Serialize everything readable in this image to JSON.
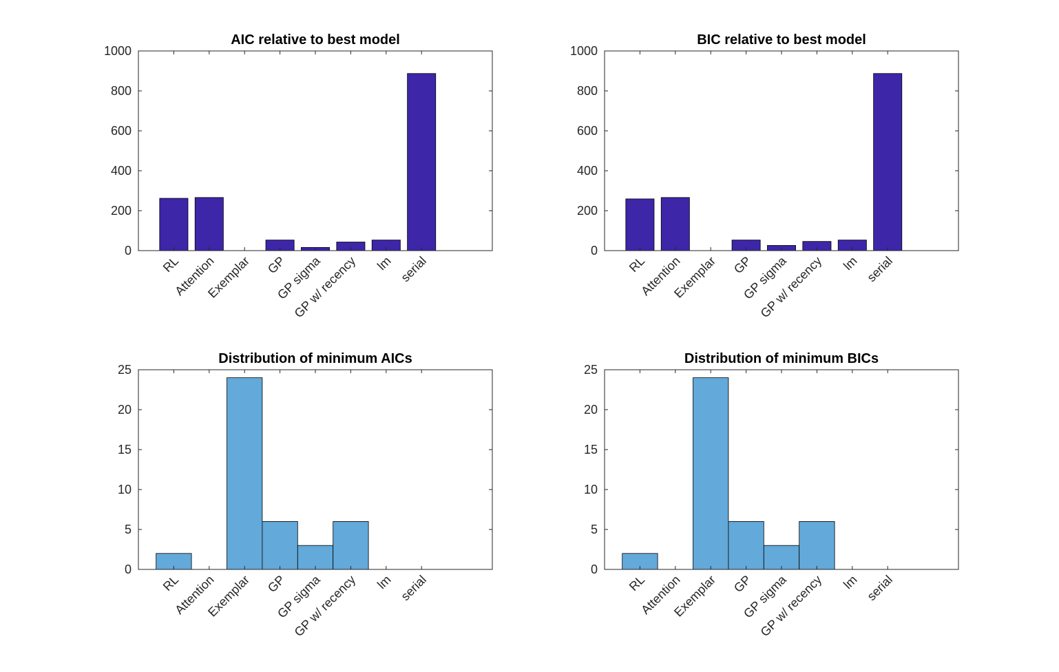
{
  "chart_data": [
    {
      "type": "bar",
      "title": "AIC relative to best model",
      "categories": [
        "RL",
        "Attention",
        "Exemplar",
        "GP",
        "GP sigma",
        "GP w/ recency",
        "lm",
        "serial"
      ],
      "values": [
        262,
        266,
        0,
        53,
        16,
        43,
        53,
        887
      ],
      "ylim": [
        0,
        1000
      ],
      "yticks": [
        0,
        200,
        400,
        600,
        800,
        1000
      ],
      "xlim": [
        0,
        10
      ],
      "bar_positions": [
        1,
        2,
        3,
        4,
        5,
        6,
        7,
        8
      ],
      "bar_width": 0.8,
      "color": "#3D26A8",
      "grid": false
    },
    {
      "type": "bar",
      "title": "BIC relative to best model",
      "categories": [
        "RL",
        "Attention",
        "Exemplar",
        "GP",
        "GP sigma",
        "GP w/ recency",
        "lm",
        "serial"
      ],
      "values": [
        259,
        266,
        0,
        53,
        26,
        46,
        53,
        887
      ],
      "ylim": [
        0,
        1000
      ],
      "yticks": [
        0,
        200,
        400,
        600,
        800,
        1000
      ],
      "xlim": [
        0,
        10
      ],
      "bar_positions": [
        1,
        2,
        3,
        4,
        5,
        6,
        7,
        8
      ],
      "bar_width": 0.8,
      "color": "#3D26A8",
      "grid": false
    },
    {
      "type": "bar",
      "title": "Distribution of minimum AICs",
      "categories": [
        "RL",
        "Attention",
        "Exemplar",
        "GP",
        "GP sigma",
        "GP w/ recency",
        "lm",
        "serial"
      ],
      "values": [
        2,
        0,
        24,
        6,
        3,
        6,
        0,
        0
      ],
      "ylim": [
        0,
        25
      ],
      "yticks": [
        0,
        5,
        10,
        15,
        20,
        25
      ],
      "xlim": [
        0,
        10
      ],
      "bar_positions": [
        1,
        2,
        3,
        4,
        5,
        6,
        7,
        8
      ],
      "bar_width": 1,
      "color": "#63A9D9",
      "grid": false
    },
    {
      "type": "bar",
      "title": "Distribution of minimum BICs",
      "categories": [
        "RL",
        "Attention",
        "Exemplar",
        "GP",
        "GP sigma",
        "GP w/ recency",
        "lm",
        "serial"
      ],
      "values": [
        2,
        0,
        24,
        6,
        3,
        6,
        0,
        0
      ],
      "ylim": [
        0,
        25
      ],
      "yticks": [
        0,
        5,
        10,
        15,
        20,
        25
      ],
      "xlim": [
        0,
        10
      ],
      "bar_positions": [
        1,
        2,
        3,
        4,
        5,
        6,
        7,
        8
      ],
      "bar_width": 1,
      "color": "#63A9D9",
      "grid": false
    }
  ]
}
